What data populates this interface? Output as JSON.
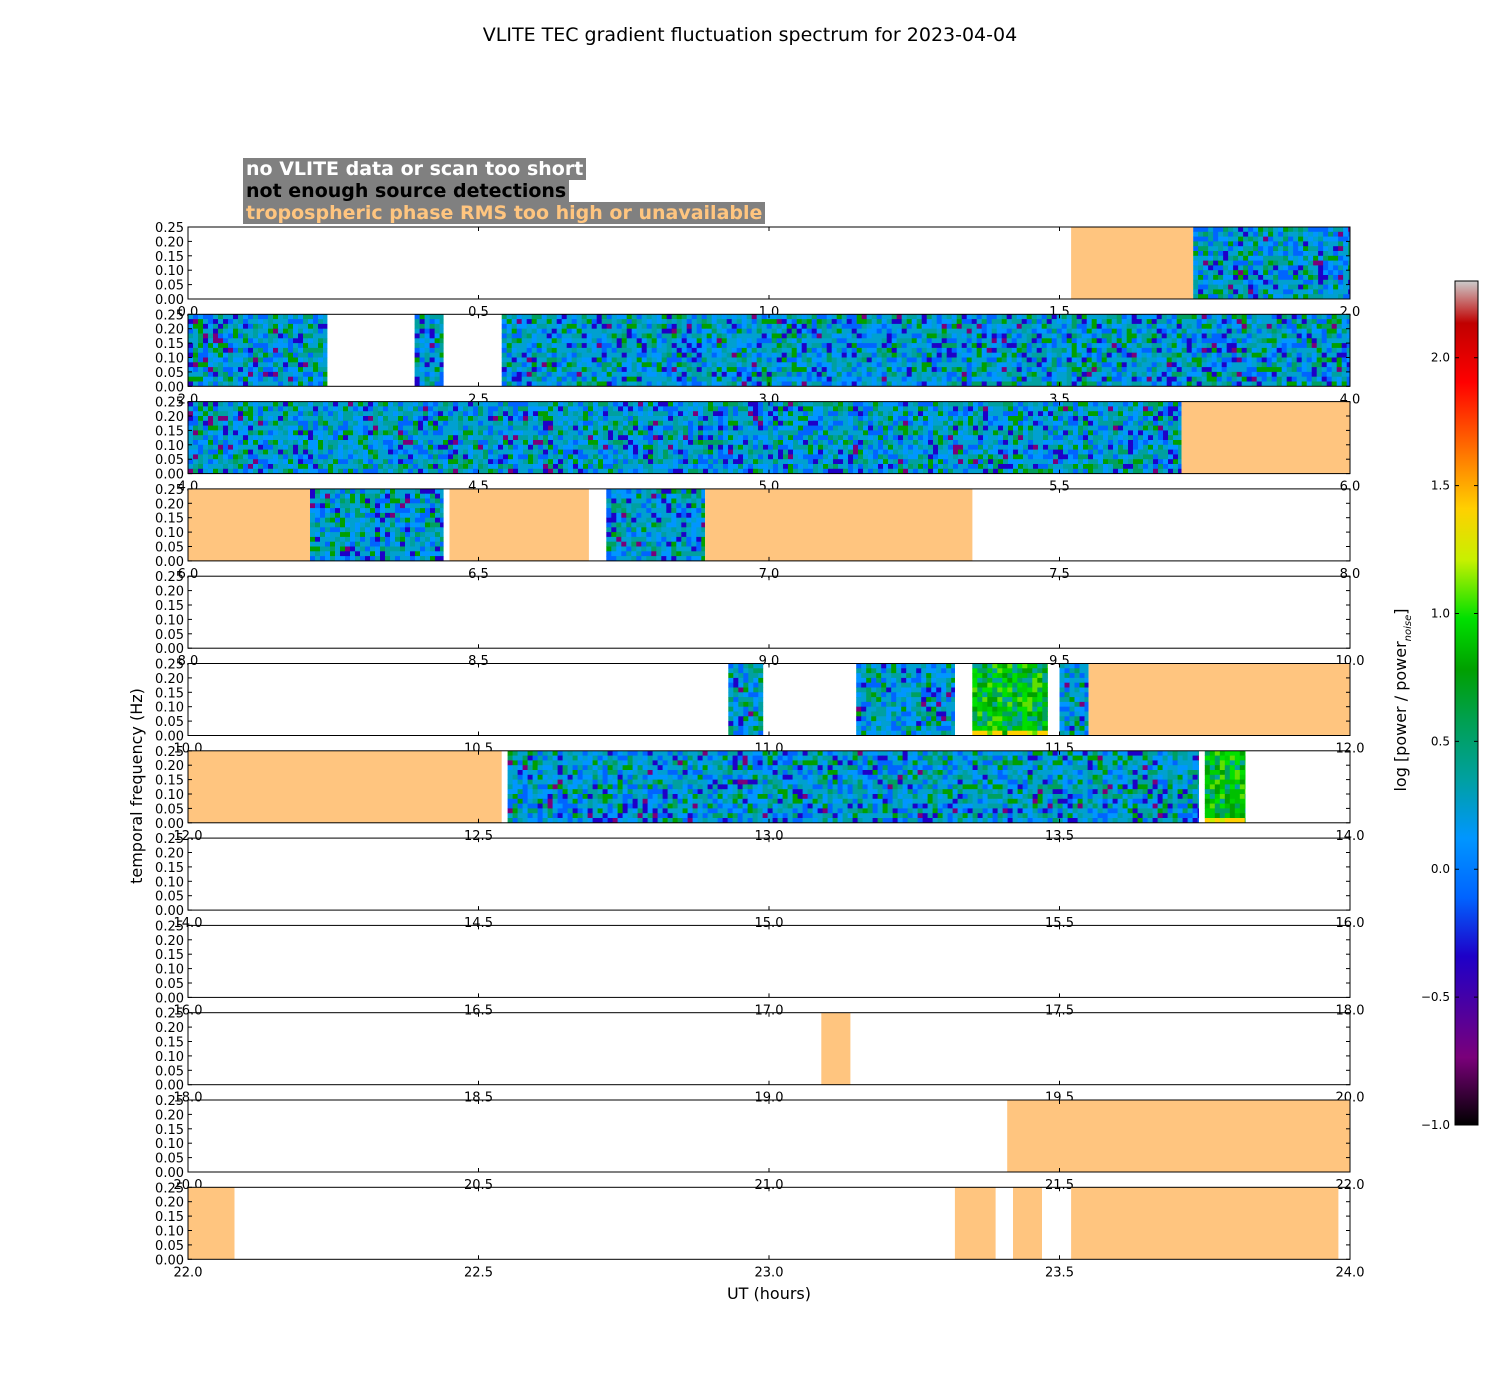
{
  "title": "VLITE TEC gradient fluctuation spectrum for 2023-04-04",
  "legend": {
    "no_data": "no VLITE data or scan too short",
    "few_detections": "not enough source detections",
    "tropo": "tropospheric phase RMS too high or unavailable"
  },
  "colors": {
    "flag": "#ffc57f",
    "legend_bg": "#808080"
  },
  "chart_data": {
    "type": "heatmap",
    "title": "VLITE TEC gradient fluctuation spectrum for 2023-04-04",
    "xlabel": "UT (hours)",
    "ylabel": "temporal frequency (Hz)",
    "ylim": [
      0,
      0.25
    ],
    "yticks": [
      "0.00",
      "0.05",
      "0.10",
      "0.15",
      "0.20",
      "0.25"
    ],
    "colorbar": {
      "label": "log [power / power",
      "label_sub": "noise",
      "label_end": "]",
      "range": [
        -1.0,
        2.3
      ],
      "ticks": [
        "−1.0",
        "−0.5",
        "0.0",
        "0.5",
        "1.0",
        "1.5",
        "2.0"
      ]
    },
    "panels": [
      {
        "xlim": [
          0,
          2
        ],
        "ticks": [
          "0.0",
          "0.5",
          "1.0",
          "1.5",
          "2.0"
        ],
        "flagged": [
          [
            1.52,
            1.73
          ]
        ],
        "spectra": [
          [
            1.73,
            2.0,
            0
          ]
        ]
      },
      {
        "xlim": [
          2,
          4
        ],
        "ticks": [
          "2.0",
          "2.5",
          "3.0",
          "3.5",
          "4.0"
        ],
        "flagged": [],
        "spectra": [
          [
            2.0,
            2.24,
            0
          ],
          [
            2.39,
            2.44,
            0
          ],
          [
            2.54,
            4.0,
            0
          ]
        ]
      },
      {
        "xlim": [
          4,
          6
        ],
        "ticks": [
          "4.0",
          "4.5",
          "5.0",
          "5.5",
          "6.0"
        ],
        "flagged": [
          [
            5.71,
            6.0
          ]
        ],
        "spectra": [
          [
            4.0,
            5.71,
            0
          ]
        ]
      },
      {
        "xlim": [
          6,
          8
        ],
        "ticks": [
          "6.0",
          "6.5",
          "7.0",
          "7.5",
          "8.0"
        ],
        "flagged": [
          [
            6.0,
            6.21
          ],
          [
            6.45,
            6.69
          ],
          [
            6.89,
            7.35
          ]
        ],
        "spectra": [
          [
            6.21,
            6.44,
            0
          ],
          [
            6.72,
            6.89,
            0
          ]
        ]
      },
      {
        "xlim": [
          8,
          10
        ],
        "ticks": [
          "8.0",
          "8.5",
          "9.0",
          "9.5",
          "10.0"
        ],
        "flagged": [],
        "spectra": []
      },
      {
        "xlim": [
          10,
          12
        ],
        "ticks": [
          "10.0",
          "10.5",
          "11.0",
          "11.5",
          "12.0"
        ],
        "flagged": [
          [
            11.55,
            12.0
          ]
        ],
        "spectra": [
          [
            10.93,
            10.99,
            0
          ],
          [
            11.15,
            11.32,
            0
          ],
          [
            11.35,
            11.48,
            1
          ],
          [
            11.5,
            11.55,
            0
          ]
        ]
      },
      {
        "xlim": [
          12,
          14
        ],
        "ticks": [
          "12.0",
          "12.5",
          "13.0",
          "13.5",
          "14.0"
        ],
        "flagged": [
          [
            12.0,
            12.54
          ]
        ],
        "spectra": [
          [
            12.55,
            13.74,
            0
          ],
          [
            13.75,
            13.82,
            1
          ]
        ]
      },
      {
        "xlim": [
          14,
          16
        ],
        "ticks": [
          "14.0",
          "14.5",
          "15.0",
          "15.5",
          "16.0"
        ],
        "flagged": [],
        "spectra": []
      },
      {
        "xlim": [
          16,
          18
        ],
        "ticks": [
          "16.0",
          "16.5",
          "17.0",
          "17.5",
          "18.0"
        ],
        "flagged": [],
        "spectra": []
      },
      {
        "xlim": [
          18,
          20
        ],
        "ticks": [
          "18.0",
          "18.5",
          "19.0",
          "19.5",
          "20.0"
        ],
        "flagged": [
          [
            19.09,
            19.14
          ]
        ],
        "spectra": []
      },
      {
        "xlim": [
          20,
          22
        ],
        "ticks": [
          "20.0",
          "20.5",
          "21.0",
          "21.5",
          "22.0"
        ],
        "flagged": [
          [
            21.41,
            22.0
          ]
        ],
        "spectra": []
      },
      {
        "xlim": [
          22,
          24
        ],
        "ticks": [
          "22.0",
          "22.5",
          "23.0",
          "23.5",
          "24.0"
        ],
        "flagged": [
          [
            22.0,
            22.08
          ],
          [
            23.32,
            23.39
          ],
          [
            23.42,
            23.47
          ],
          [
            23.52,
            23.98
          ]
        ],
        "spectra": []
      }
    ]
  }
}
